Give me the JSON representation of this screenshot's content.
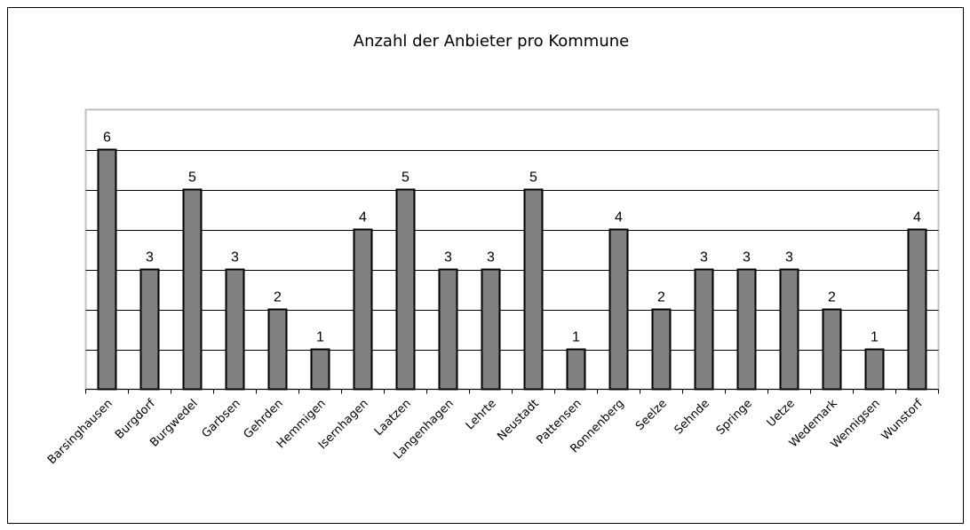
{
  "chart_data": {
    "type": "bar",
    "title": "Anzahl der Anbieter pro Kommune",
    "categories": [
      "Barsinghausen",
      "Burgdorf",
      "Burgwedel",
      "Garbsen",
      "Gehrden",
      "Hemmigen",
      "Isernhagen",
      "Laatzen",
      "Langenhagen",
      "Lehrte",
      "Neustadt",
      "Pattensen",
      "Ronnenberg",
      "Seelze",
      "Sehnde",
      "Springe",
      "Uetze",
      "Wedemark",
      "Wennigsen",
      "Wunstorf"
    ],
    "values": [
      6,
      3,
      5,
      3,
      2,
      1,
      4,
      5,
      3,
      3,
      5,
      1,
      4,
      2,
      3,
      3,
      3,
      2,
      1,
      4
    ],
    "color": "#808080",
    "ylim": [
      0,
      7
    ],
    "yticks": [
      1,
      2,
      3,
      4,
      5,
      6
    ],
    "grid": true
  }
}
